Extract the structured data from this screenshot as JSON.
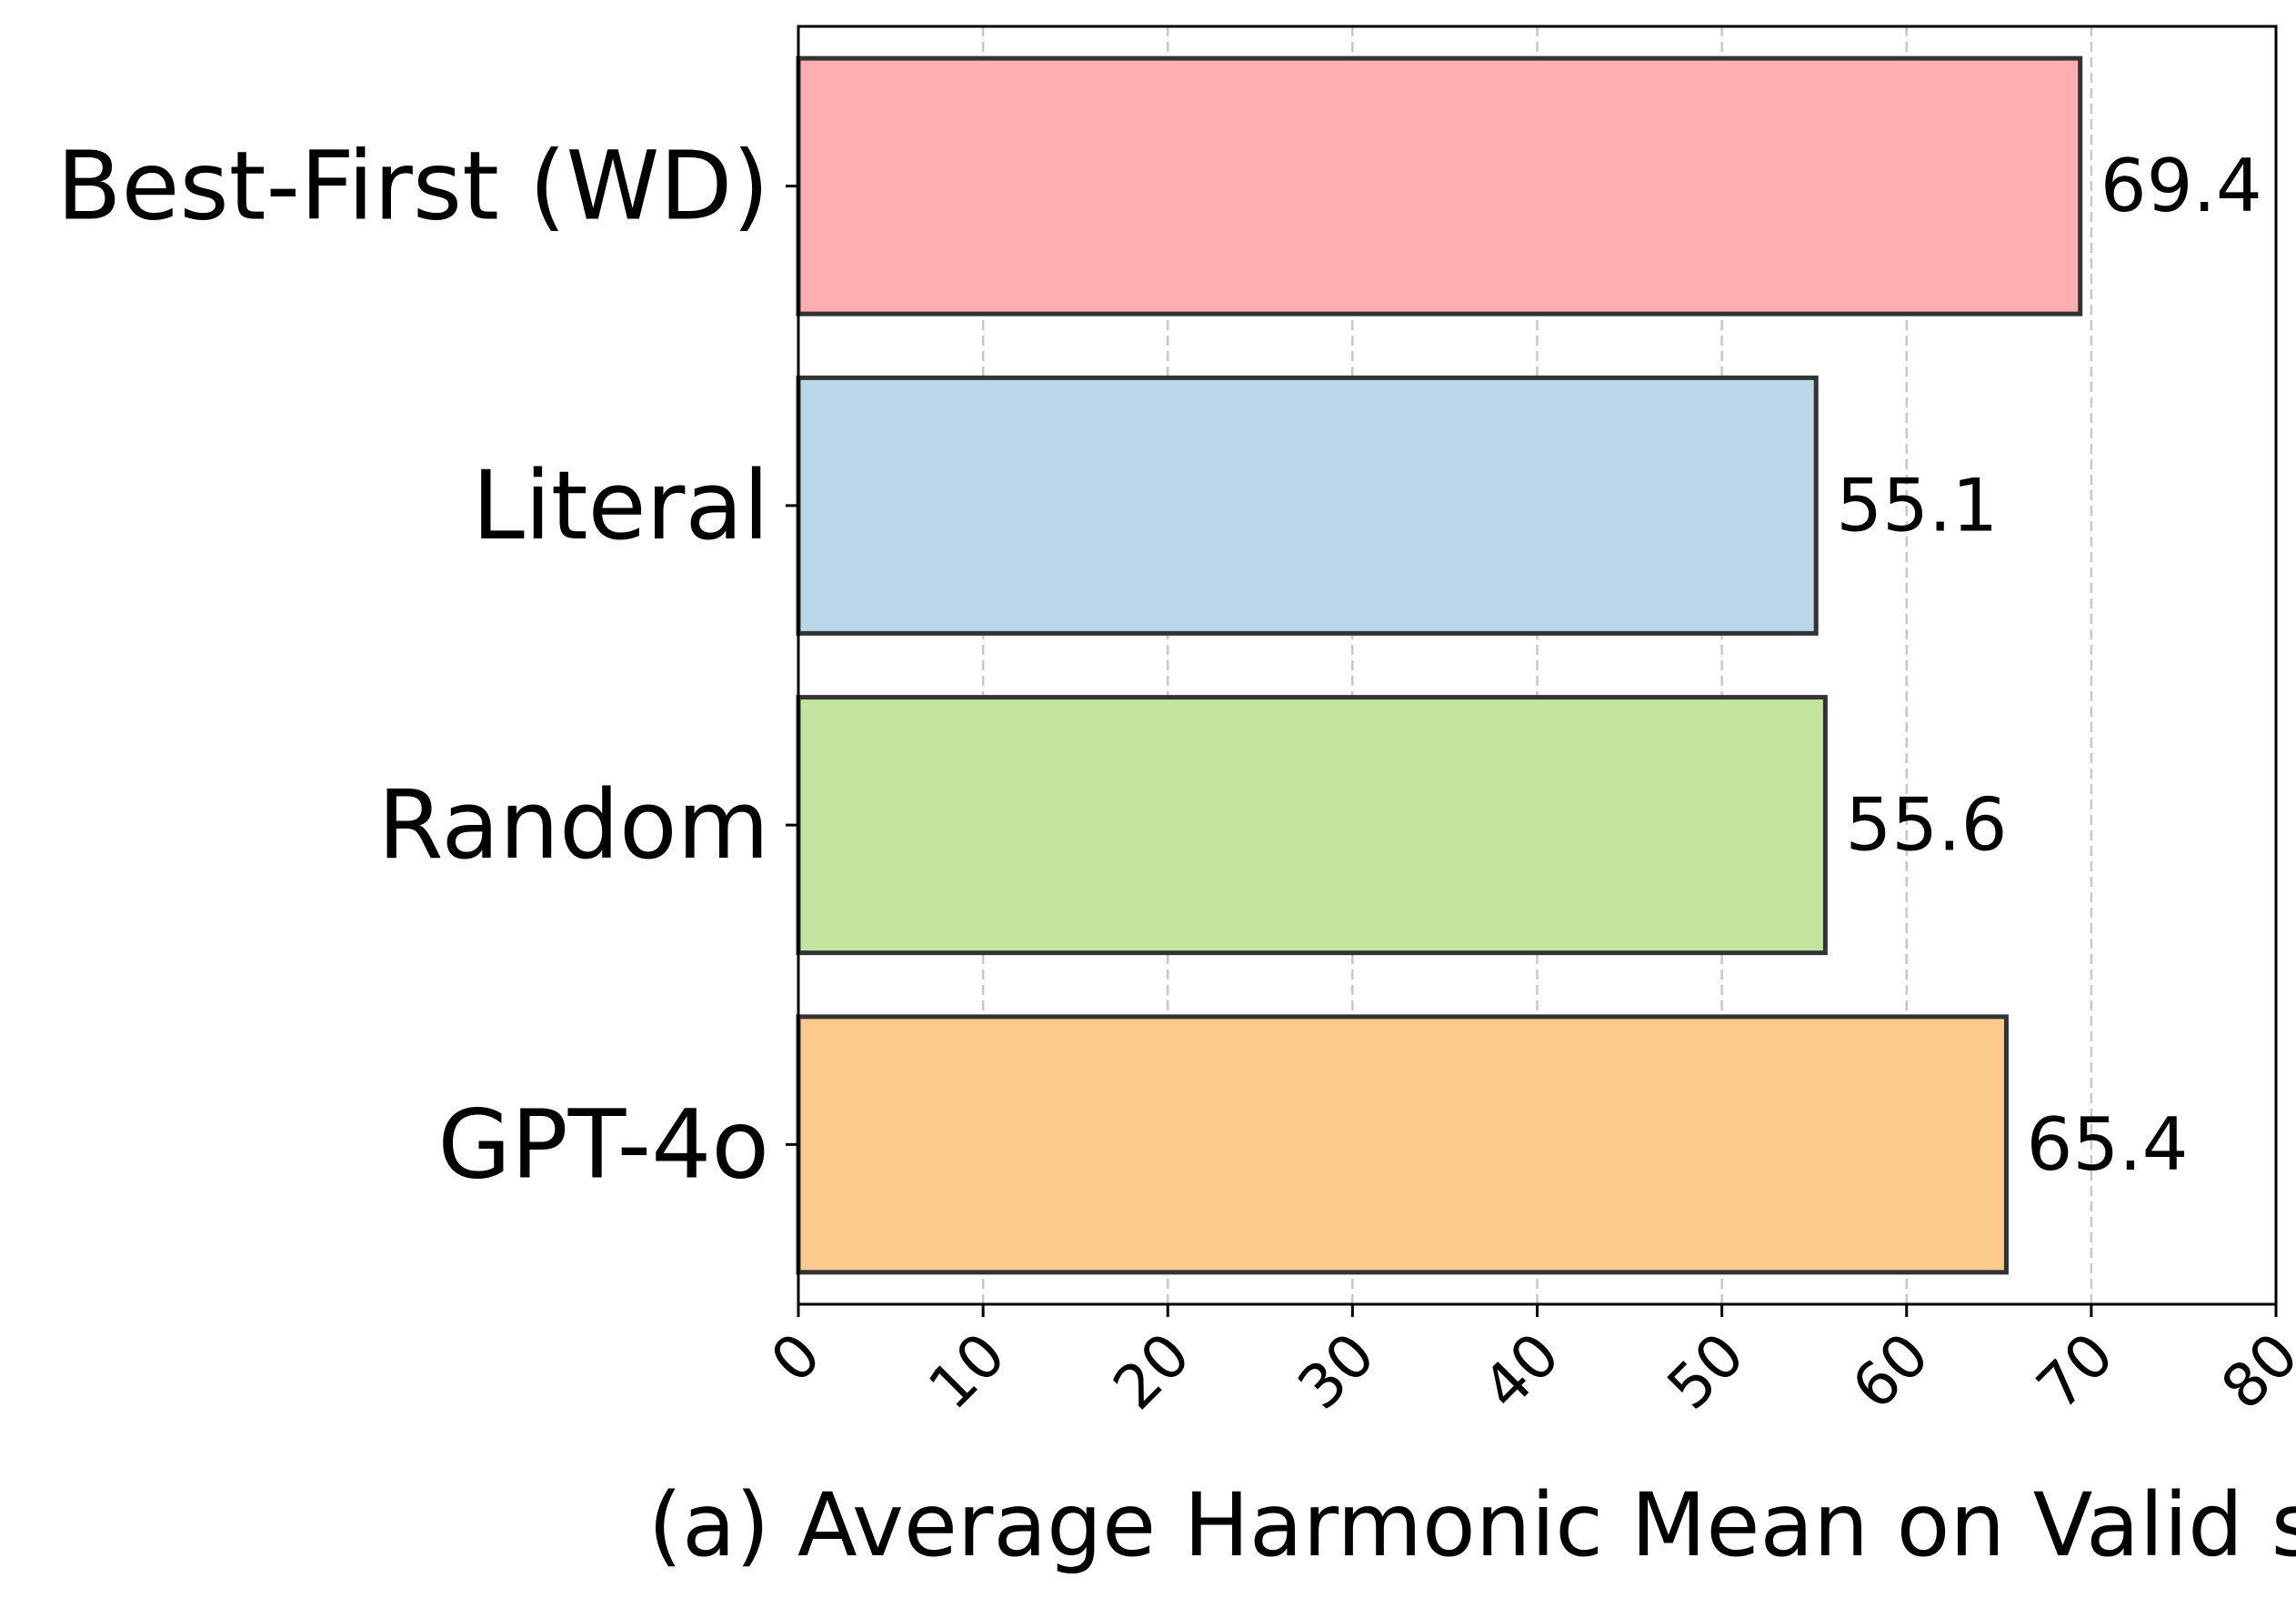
{
  "chart_data": {
    "type": "bar",
    "orientation": "horizontal",
    "categories": [
      "Best-First (WD)",
      "Literal",
      "Random",
      "GPT-4o"
    ],
    "values": [
      69.4,
      55.1,
      55.6,
      65.4
    ],
    "value_labels": [
      "69.4",
      "55.1",
      "55.6",
      "65.4"
    ],
    "colors": [
      "#fcaeb0",
      "#b9d7e8",
      "#c3e49f",
      "#fcca8c"
    ],
    "xlabel": "(a) Average Harmonic Mean on Valid set",
    "ylabel": "",
    "xlim": [
      0,
      80
    ],
    "xticks": [
      0,
      10,
      20,
      30,
      40,
      50,
      60,
      70,
      80
    ],
    "grid": "x, dashed",
    "legend": "none"
  }
}
